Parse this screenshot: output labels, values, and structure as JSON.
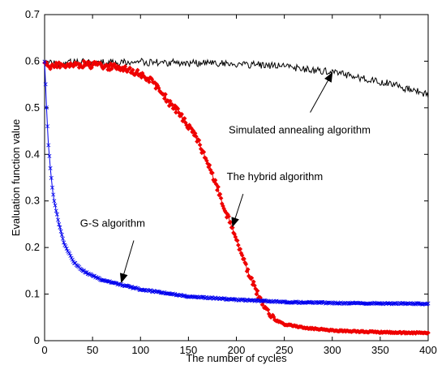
{
  "chart_data": {
    "type": "line",
    "title": "",
    "xlabel": "The number of cycles",
    "ylabel": "Evaluation function value",
    "xlim": [
      0,
      400
    ],
    "ylim": [
      0,
      0.7
    ],
    "xticks": [
      0,
      50,
      100,
      150,
      200,
      250,
      300,
      350,
      400
    ],
    "yticks": [
      0,
      0.1,
      0.2,
      0.3,
      0.4,
      0.5,
      0.6,
      0.7
    ],
    "grid": false,
    "legend": "none",
    "series": [
      {
        "key": "simulated_annealing",
        "color": "#000000",
        "marker": "none",
        "x": [
          0,
          25,
          50,
          75,
          100,
          125,
          150,
          175,
          200,
          225,
          250,
          275,
          300,
          325,
          350,
          375,
          400
        ],
        "y": [
          0.595,
          0.597,
          0.598,
          0.598,
          0.598,
          0.597,
          0.596,
          0.595,
          0.594,
          0.592,
          0.589,
          0.583,
          0.576,
          0.566,
          0.556,
          0.543,
          0.528
        ]
      },
      {
        "key": "hybrid",
        "color": "#ee0000",
        "marker": "diamond",
        "x": [
          0,
          20,
          40,
          60,
          80,
          100,
          110,
          120,
          130,
          140,
          150,
          160,
          170,
          180,
          190,
          200,
          210,
          220,
          230,
          240,
          250,
          275,
          300,
          325,
          350,
          375,
          400
        ],
        "y": [
          0.59,
          0.592,
          0.593,
          0.59,
          0.585,
          0.572,
          0.56,
          0.54,
          0.51,
          0.49,
          0.46,
          0.43,
          0.38,
          0.33,
          0.27,
          0.22,
          0.16,
          0.11,
          0.07,
          0.045,
          0.035,
          0.027,
          0.022,
          0.02,
          0.018,
          0.017,
          0.017
        ]
      },
      {
        "key": "gs",
        "color": "#0000ee",
        "marker": "x",
        "x": [
          0,
          2,
          4,
          6,
          8,
          10,
          15,
          20,
          30,
          40,
          50,
          60,
          80,
          100,
          150,
          200,
          250,
          300,
          350,
          400
        ],
        "y": [
          0.6,
          0.5,
          0.42,
          0.37,
          0.33,
          0.3,
          0.25,
          0.21,
          0.17,
          0.15,
          0.14,
          0.13,
          0.12,
          0.11,
          0.095,
          0.088,
          0.083,
          0.081,
          0.08,
          0.079
        ]
      }
    ],
    "annotations": [
      {
        "text": "Simulated annealing algorithm",
        "text_at": [
          192,
          0.445
        ],
        "arrow_from": [
          277,
          0.49
        ],
        "arrow_to": [
          300,
          0.575
        ]
      },
      {
        "text": "The hybrid algorithm",
        "text_at": [
          190,
          0.345
        ],
        "arrow_from": [
          207,
          0.315
        ],
        "arrow_to": [
          196,
          0.245
        ]
      },
      {
        "text": "G-S algorithm",
        "text_at": [
          37,
          0.245
        ],
        "arrow_from": [
          93,
          0.215
        ],
        "arrow_to": [
          80,
          0.125
        ]
      }
    ]
  }
}
